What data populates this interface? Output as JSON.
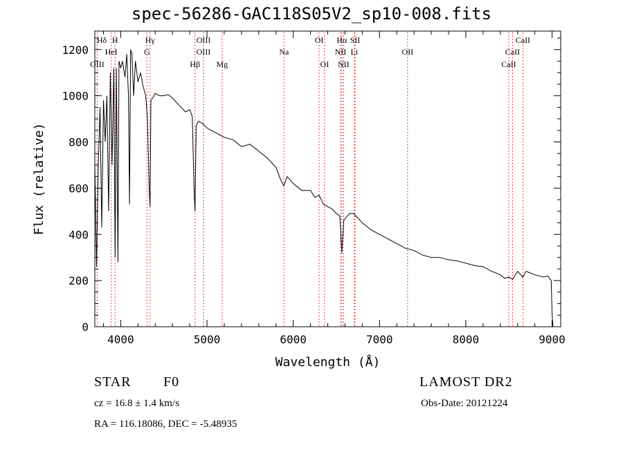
{
  "title": "spec-56286-GAC118S05V2_sp10-008.fits",
  "info": {
    "object_class": "STAR",
    "subclass": "F0",
    "survey": "LAMOST DR2",
    "redshift": "cz = 16.8 ± 1.4 km/s",
    "obs_date": "Obs-Date: 20121224",
    "coords": "RA = 116.18086, DEC =  -5.48935"
  },
  "chart_data": {
    "type": "line",
    "title": "spec-56286-GAC118S05V2_sp10-008.fits",
    "xlabel": "Wavelength (Å)",
    "ylabel": "Flux (relative)",
    "xlim": [
      3700,
      9100
    ],
    "ylim": [
      0,
      1280
    ],
    "xticks": [
      4000,
      5000,
      6000,
      7000,
      8000,
      9000
    ],
    "yticks": [
      0,
      200,
      400,
      600,
      800,
      1000,
      1200
    ],
    "grid": false,
    "line_color": "#000000",
    "marker_color": "#e00000",
    "series": [
      {
        "x": [
          3700,
          3720,
          3740,
          3760,
          3780,
          3800,
          3820,
          3840,
          3860,
          3880,
          3900,
          3920,
          3935,
          3950,
          3968,
          3980,
          4000,
          4020,
          4050,
          4070,
          4090,
          4102,
          4115,
          4130,
          4150,
          4170,
          4200,
          4230,
          4260,
          4290,
          4310,
          4330,
          4340,
          4350,
          4370,
          4400,
          4450,
          4500,
          4550,
          4600,
          4650,
          4700,
          4750,
          4800,
          4830,
          4850,
          4861,
          4875,
          4900,
          4950,
          5000,
          5050,
          5100,
          5150,
          5200,
          5300,
          5400,
          5500,
          5600,
          5700,
          5800,
          5850,
          5890,
          5930,
          6000,
          6100,
          6200,
          6250,
          6300,
          6350,
          6400,
          6450,
          6500,
          6540,
          6563,
          6585,
          6650,
          6700,
          6800,
          6900,
          7000,
          7100,
          7200,
          7300,
          7400,
          7500,
          7600,
          7700,
          7800,
          7900,
          8000,
          8100,
          8200,
          8300,
          8400,
          8450,
          8498,
          8542,
          8600,
          8662,
          8700,
          8800,
          8900,
          8950,
          8990,
          9000,
          9010
        ],
        "y": [
          700,
          260,
          700,
          950,
          430,
          980,
          800,
          1000,
          500,
          1100,
          700,
          1120,
          300,
          1120,
          280,
          1150,
          1120,
          1150,
          1080,
          1180,
          1000,
          530,
          1200,
          1180,
          1000,
          1150,
          1060,
          1100,
          1040,
          1000,
          900,
          600,
          520,
          980,
          990,
          1010,
          1000,
          1000,
          1005,
          990,
          970,
          950,
          930,
          940,
          910,
          600,
          500,
          870,
          890,
          880,
          860,
          850,
          840,
          830,
          820,
          810,
          780,
          790,
          760,
          730,
          690,
          640,
          610,
          650,
          620,
          590,
          590,
          560,
          570,
          530,
          520,
          510,
          490,
          480,
          320,
          460,
          490,
          490,
          450,
          420,
          400,
          380,
          360,
          340,
          330,
          310,
          300,
          300,
          290,
          285,
          275,
          265,
          260,
          240,
          225,
          210,
          215,
          205,
          240,
          215,
          240,
          225,
          215,
          220,
          200,
          60,
          0
        ]
      }
    ],
    "lines": [
      {
        "label": "Hδ",
        "wl": 3700,
        "row": 0,
        "ldx": 10,
        "style": "dashed"
      },
      {
        "label": "H",
        "wl": 3934,
        "row": 0,
        "ldx": 0,
        "style": "dotted"
      },
      {
        "label": "Hγ",
        "wl": 4340,
        "row": 0,
        "ldx": 0,
        "style": "dotted"
      },
      {
        "label": "OIII",
        "wl": 4960,
        "row": 0,
        "ldx": 0,
        "style": "dotted"
      },
      {
        "label": "OI",
        "wl": 6300,
        "row": 0,
        "ldx": 0,
        "style": "dotted"
      },
      {
        "label": "Hα",
        "wl": 6563,
        "row": 0,
        "ldx": 0,
        "style": "dotted"
      },
      {
        "label": "SII",
        "wl": 6716,
        "row": 0,
        "ldx": 0,
        "style": "dotted"
      },
      {
        "label": "CaII",
        "wl": 8662,
        "row": 0,
        "ldx": 0,
        "style": "dotted"
      },
      {
        "label": "HeI",
        "wl": 3890,
        "row": 1,
        "ldx": 0,
        "style": "dotted"
      },
      {
        "label": "G",
        "wl": 4304,
        "row": 1,
        "ldx": 0,
        "style": "dotted"
      },
      {
        "label": "OIII",
        "wl": 4959,
        "row": 1,
        "ldx": 0,
        "style": "dotted"
      },
      {
        "label": "Na",
        "wl": 5893,
        "row": 1,
        "ldx": 0,
        "style": "dotted"
      },
      {
        "label": "NII",
        "wl": 6548,
        "row": 1,
        "ldx": 0,
        "style": "dotted"
      },
      {
        "label": "Li",
        "wl": 6708,
        "row": 1,
        "ldx": 0,
        "style": "dotted"
      },
      {
        "label": "OII",
        "wl": 7325,
        "row": 1,
        "ldx": 0,
        "style": "dotted"
      },
      {
        "label": "CaII",
        "wl": 8542,
        "row": 1,
        "ldx": 0,
        "style": "dotted"
      },
      {
        "label": "OIII",
        "wl": 3727,
        "row": 2,
        "ldx": 0,
        "style": "dotted"
      },
      {
        "label": "Hβ",
        "wl": 4861,
        "row": 2,
        "ldx": 0,
        "style": "dotted"
      },
      {
        "label": "Mg",
        "wl": 5175,
        "row": 2,
        "ldx": 0,
        "style": "dotted"
      },
      {
        "label": "OI",
        "wl": 6363,
        "row": 2,
        "ldx": 0,
        "style": "dotted"
      },
      {
        "label": "NII",
        "wl": 6583,
        "row": 2,
        "ldx": 0,
        "style": "dotted"
      },
      {
        "label": "CaII",
        "wl": 8498,
        "row": 2,
        "ldx": 0,
        "style": "dotted"
      }
    ]
  }
}
